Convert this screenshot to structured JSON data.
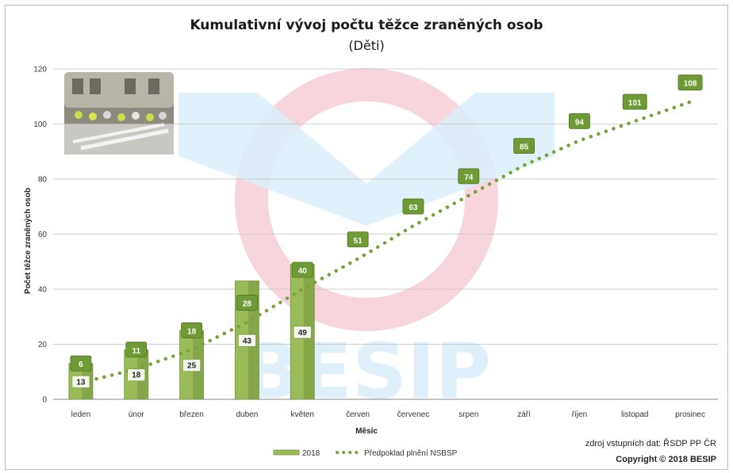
{
  "chart_data": {
    "type": "bar",
    "title": "Kumulativní vývoj počtu těžce zraněných osob",
    "subtitle": "(Děti)",
    "xlabel": "Měsíc",
    "ylabel": "Počet těžce zraněných osob",
    "ylim": [
      0,
      120
    ],
    "yticks": [
      "0",
      "20",
      "40",
      "60",
      "80",
      "100",
      "120"
    ],
    "categories": [
      "leden",
      "únor",
      "březen",
      "duben",
      "květen",
      "červen",
      "červenec",
      "srpen",
      "září",
      "říjen",
      "listopad",
      "prosinec"
    ],
    "series": [
      {
        "name": "2018",
        "kind": "bar",
        "values": [
          13,
          18,
          25,
          43,
          49,
          null,
          null,
          null,
          null,
          null,
          null,
          null
        ]
      },
      {
        "name": "Předpoklad plnění NSBSP",
        "kind": "dotted-line",
        "values": [
          6,
          11,
          18,
          28,
          40,
          51,
          63,
          74,
          85,
          94,
          101,
          108
        ]
      }
    ],
    "grid": true,
    "legend_position": "bottom"
  },
  "footer": {
    "source": "zdroj vstupních dat: ŘSDP PP ČR",
    "copyright": "Copyright © 2018 BESIP"
  },
  "watermark": {
    "text": "BESIP"
  },
  "colors": {
    "bar": "#9bbb59",
    "bar_dark": "#77933c",
    "line": "#77a33a",
    "label_box": "#6f9a35",
    "watermark_blue": "#dbeefa",
    "watermark_pink": "#f6d5dc"
  }
}
